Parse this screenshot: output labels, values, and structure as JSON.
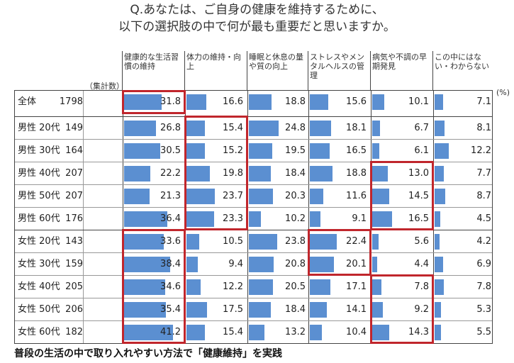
{
  "question": {
    "line1": "Q.あなたは、ご自身の健康を維持するために、",
    "line2": "以下の選択肢の中で何が最も重要だと思いますか。"
  },
  "total_label": "（集計数）",
  "unit": "(%)",
  "footer": "普段の生活の中で取り入れやすい方法で「健康維持」を実践",
  "highlight_color": "#c0262c",
  "bar_color": "#5b8fd1",
  "chart_data": {
    "type": "table",
    "columns": [
      "健康的な生活習慣の維持",
      "体力の維持・向上",
      "睡眠と休息の量や質の向上",
      "ストレスやメンタルヘルスの管理",
      "病気や不調の早期発見",
      "この中にはない・わからない"
    ],
    "rows": [
      {
        "label": "全体",
        "n": 1798,
        "values": [
          31.8,
          16.6,
          18.8,
          15.6,
          10.1,
          7.1
        ]
      },
      {
        "label": "男性 20代",
        "n": 149,
        "values": [
          26.8,
          15.4,
          24.8,
          18.1,
          6.7,
          8.1
        ]
      },
      {
        "label": "男性 30代",
        "n": 164,
        "values": [
          30.5,
          15.2,
          19.5,
          16.5,
          6.1,
          12.2
        ]
      },
      {
        "label": "男性 40代",
        "n": 207,
        "values": [
          22.2,
          19.8,
          18.4,
          18.8,
          13.0,
          7.7
        ]
      },
      {
        "label": "男性 50代",
        "n": 207,
        "values": [
          21.3,
          23.7,
          20.3,
          11.6,
          14.5,
          8.7
        ]
      },
      {
        "label": "男性 60代",
        "n": 176,
        "values": [
          36.4,
          23.3,
          10.2,
          9.1,
          16.5,
          4.5
        ]
      },
      {
        "label": "女性 20代",
        "n": 143,
        "values": [
          33.6,
          10.5,
          23.8,
          22.4,
          5.6,
          4.2
        ]
      },
      {
        "label": "女性 30代",
        "n": 159,
        "values": [
          38.4,
          9.4,
          20.8,
          20.1,
          4.4,
          6.9
        ]
      },
      {
        "label": "女性 40代",
        "n": 205,
        "values": [
          34.6,
          12.2,
          20.5,
          17.1,
          7.8,
          7.8
        ]
      },
      {
        "label": "女性 50代",
        "n": 206,
        "values": [
          35.4,
          17.5,
          18.4,
          14.1,
          9.2,
          5.3
        ]
      },
      {
        "label": "女性 60代",
        "n": 182,
        "values": [
          41.2,
          15.4,
          13.2,
          10.4,
          14.3,
          5.5
        ]
      }
    ],
    "highlights": [
      {
        "column": 0,
        "rows": [
          0,
          0
        ]
      },
      {
        "column": 1,
        "rows": [
          1,
          5
        ]
      },
      {
        "column": 4,
        "rows": [
          3,
          5
        ]
      },
      {
        "column": 0,
        "rows": [
          6,
          10
        ]
      },
      {
        "column": 3,
        "rows": [
          6,
          7
        ]
      },
      {
        "column": 4,
        "rows": [
          8,
          10
        ]
      }
    ]
  }
}
